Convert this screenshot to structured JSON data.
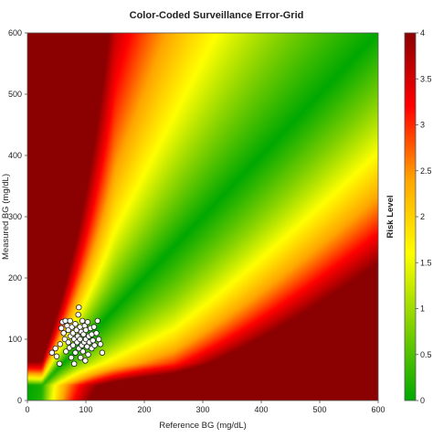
{
  "chart_data": {
    "type": "scatter",
    "title": "Color-Coded Surveillance Error-Grid",
    "xlabel": "Reference BG (mg/dL)",
    "ylabel": "Measured BG (mg/dL)",
    "xlim": [
      0,
      600
    ],
    "ylim": [
      0,
      600
    ],
    "xticks": [
      0,
      100,
      200,
      300,
      400,
      500,
      600
    ],
    "yticks": [
      0,
      100,
      200,
      300,
      400,
      500,
      600
    ],
    "background": "risk heatmap (green = low risk along identity line, yellow, red = high risk)",
    "colorbar": {
      "label": "Risk Level",
      "range": [
        0,
        4
      ],
      "ticks": [
        0,
        0.5,
        1,
        1.5,
        2,
        2.5,
        3,
        3.5,
        4
      ],
      "colors": [
        "#00a800",
        "#7fd000",
        "#ffff00",
        "#ffa500",
        "#ff0000",
        "#8b0000"
      ]
    },
    "points": [
      {
        "x": 42,
        "y": 78
      },
      {
        "x": 48,
        "y": 85
      },
      {
        "x": 50,
        "y": 72
      },
      {
        "x": 55,
        "y": 60
      },
      {
        "x": 56,
        "y": 92
      },
      {
        "x": 58,
        "y": 118
      },
      {
        "x": 60,
        "y": 128
      },
      {
        "x": 62,
        "y": 110
      },
      {
        "x": 64,
        "y": 100
      },
      {
        "x": 65,
        "y": 130
      },
      {
        "x": 66,
        "y": 80
      },
      {
        "x": 68,
        "y": 122
      },
      {
        "x": 70,
        "y": 115
      },
      {
        "x": 70,
        "y": 95
      },
      {
        "x": 72,
        "y": 86
      },
      {
        "x": 73,
        "y": 130
      },
      {
        "x": 74,
        "y": 105
      },
      {
        "x": 75,
        "y": 70
      },
      {
        "x": 76,
        "y": 120
      },
      {
        "x": 78,
        "y": 110
      },
      {
        "x": 78,
        "y": 90
      },
      {
        "x": 80,
        "y": 60
      },
      {
        "x": 80,
        "y": 100
      },
      {
        "x": 82,
        "y": 125
      },
      {
        "x": 82,
        "y": 78
      },
      {
        "x": 84,
        "y": 115
      },
      {
        "x": 85,
        "y": 95
      },
      {
        "x": 86,
        "y": 105
      },
      {
        "x": 87,
        "y": 140
      },
      {
        "x": 88,
        "y": 85
      },
      {
        "x": 88,
        "y": 152
      },
      {
        "x": 90,
        "y": 120
      },
      {
        "x": 90,
        "y": 100
      },
      {
        "x": 91,
        "y": 70
      },
      {
        "x": 92,
        "y": 112
      },
      {
        "x": 93,
        "y": 90
      },
      {
        "x": 94,
        "y": 130
      },
      {
        "x": 95,
        "y": 80
      },
      {
        "x": 96,
        "y": 108
      },
      {
        "x": 97,
        "y": 95
      },
      {
        "x": 98,
        "y": 122
      },
      {
        "x": 99,
        "y": 65
      },
      {
        "x": 100,
        "y": 100
      },
      {
        "x": 100,
        "y": 115
      },
      {
        "x": 102,
        "y": 88
      },
      {
        "x": 103,
        "y": 128
      },
      {
        "x": 104,
        "y": 75
      },
      {
        "x": 105,
        "y": 105
      },
      {
        "x": 106,
        "y": 95
      },
      {
        "x": 108,
        "y": 118
      },
      {
        "x": 110,
        "y": 85
      },
      {
        "x": 110,
        "y": 108
      },
      {
        "x": 112,
        "y": 98
      },
      {
        "x": 114,
        "y": 120
      },
      {
        "x": 115,
        "y": 90
      },
      {
        "x": 118,
        "y": 110
      },
      {
        "x": 120,
        "y": 130
      },
      {
        "x": 122,
        "y": 100
      },
      {
        "x": 125,
        "y": 92
      },
      {
        "x": 128,
        "y": 78
      }
    ]
  }
}
